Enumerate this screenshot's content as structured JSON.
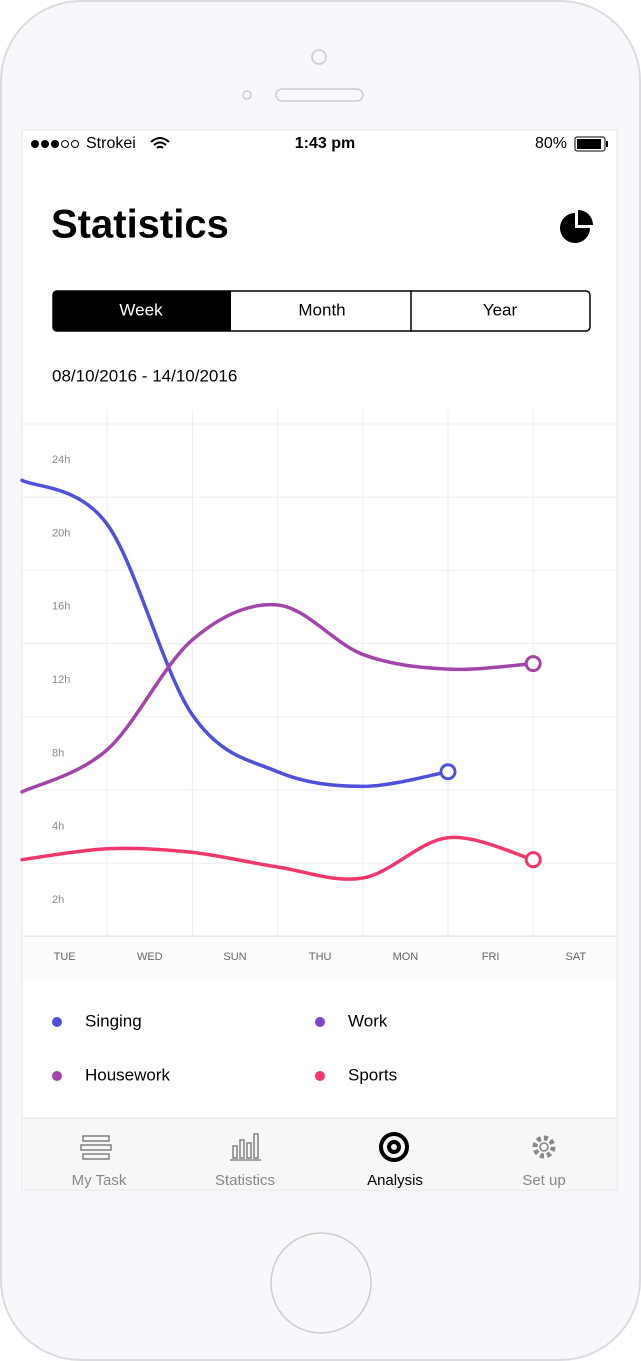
{
  "status_bar": {
    "carrier": "Strokei",
    "time": "1:43 pm",
    "battery": "80%"
  },
  "header": {
    "title": "Statistics"
  },
  "tabs": [
    "Week",
    "Month",
    "Year"
  ],
  "date_range": "08/10/2016 - 14/10/2016",
  "chart_data": {
    "type": "line",
    "categories": [
      "TUE",
      "WED",
      "SUN",
      "THU",
      "MON",
      "FRI",
      "SAT"
    ],
    "yticks": [
      {
        "value": 2,
        "label": "2h"
      },
      {
        "value": 4,
        "label": "4h"
      },
      {
        "value": 8,
        "label": "8h"
      },
      {
        "value": 12,
        "label": "12h"
      },
      {
        "value": 16,
        "label": "16h"
      },
      {
        "value": 20,
        "label": "20h"
      },
      {
        "value": 24,
        "label": "24h"
      }
    ],
    "series": [
      {
        "name": "Singing",
        "color": "#5050dc",
        "values": [
          22.9,
          20.5,
          10.1,
          7.0,
          6.2,
          7.0,
          null
        ]
      },
      {
        "name": "Work",
        "color": "#7a46c8",
        "values": [
          null,
          null,
          null,
          null,
          null,
          null,
          null
        ]
      },
      {
        "name": "Housework",
        "color": "#a245a8",
        "values": [
          5.9,
          8.2,
          14.2,
          16.1,
          13.4,
          12.6,
          12.9
        ]
      },
      {
        "name": "Sports",
        "color": "#f0386c",
        "values": [
          3.1,
          3.4,
          3.3,
          2.9,
          2.6,
          3.7,
          3.1
        ]
      }
    ]
  },
  "tab_bar": [
    "My Task",
    "Statistics",
    "Analysis",
    "Set up"
  ]
}
